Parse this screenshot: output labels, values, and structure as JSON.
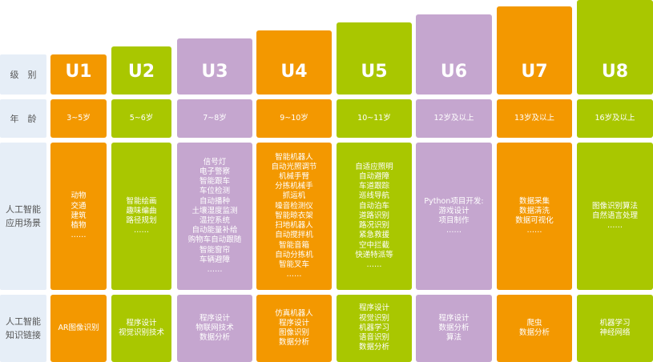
{
  "row_labels": {
    "level": "级　别",
    "age": "年　龄",
    "scenes": [
      "人工智能",
      "应用场景"
    ],
    "links": [
      "人工智能",
      "知识链接"
    ]
  },
  "colors": {
    "orange": "#f39800",
    "green": "#a9c700",
    "purple": "#c5a6cf"
  },
  "levels": [
    {
      "name": "U1",
      "age": "3~5岁",
      "scenes": [
        "动物",
        "交通",
        "建筑",
        "植物",
        "……"
      ],
      "links": [
        "AR图像识别"
      ]
    },
    {
      "name": "U2",
      "age": "5~6岁",
      "scenes": [
        "智能绘画",
        "趣味编曲",
        "路径规划",
        "……"
      ],
      "links": [
        "程序设计",
        "视觉识别技术"
      ]
    },
    {
      "name": "U3",
      "age": "7~8岁",
      "scenes": [
        "信号灯",
        "电子警察",
        "智能跟车",
        "车位检测",
        "自动播种",
        "土壤湿度监测",
        "温控系统",
        "自动能量补给",
        "购物车自动跟随",
        "智能窗帘",
        "车辆避障",
        "……"
      ],
      "links": [
        "程序设计",
        "物联网技术",
        "数据分析"
      ]
    },
    {
      "name": "U4",
      "age": "9~10岁",
      "scenes": [
        "智能机器人",
        "自动光照调节",
        "机械手臂",
        "分拣机械手",
        "抓运机",
        "噪音检测仪",
        "智能晾衣架",
        "扫地机器人",
        "自动搅拌机",
        "智能音箱",
        "自动分拣机",
        "智能叉车",
        "……"
      ],
      "links": [
        "仿真机器人",
        "程序设计",
        "图像识别",
        "数据分析"
      ]
    },
    {
      "name": "U5",
      "age": "10~11岁",
      "scenes": [
        "自适应照明",
        "自动避障",
        "车道跟踪",
        "巡线导航",
        "自动泊车",
        "道路识别",
        "路况识别",
        "紧急救援",
        "空中拦截",
        "快递特派等",
        "……"
      ],
      "links": [
        "程序设计",
        "视觉识别",
        "机器学习",
        "语音识别",
        "数据分析"
      ]
    },
    {
      "name": "U6",
      "age": "12岁及以上",
      "scenes": [
        "Python项目开发:",
        "游戏设计",
        "项目制作",
        "……"
      ],
      "links": [
        "程序设计",
        "数据分析",
        "算法"
      ]
    },
    {
      "name": "U7",
      "age": "13岁及以上",
      "scenes": [
        "数据采集",
        "数据清洗",
        "数据可视化",
        "……"
      ],
      "links": [
        "爬虫",
        "数据分析"
      ]
    },
    {
      "name": "U8",
      "age": "16岁及以上",
      "scenes": [
        "图像识别算法",
        "自然语言处理",
        "……"
      ],
      "links": [
        "机器学习",
        "神经网络"
      ]
    }
  ]
}
